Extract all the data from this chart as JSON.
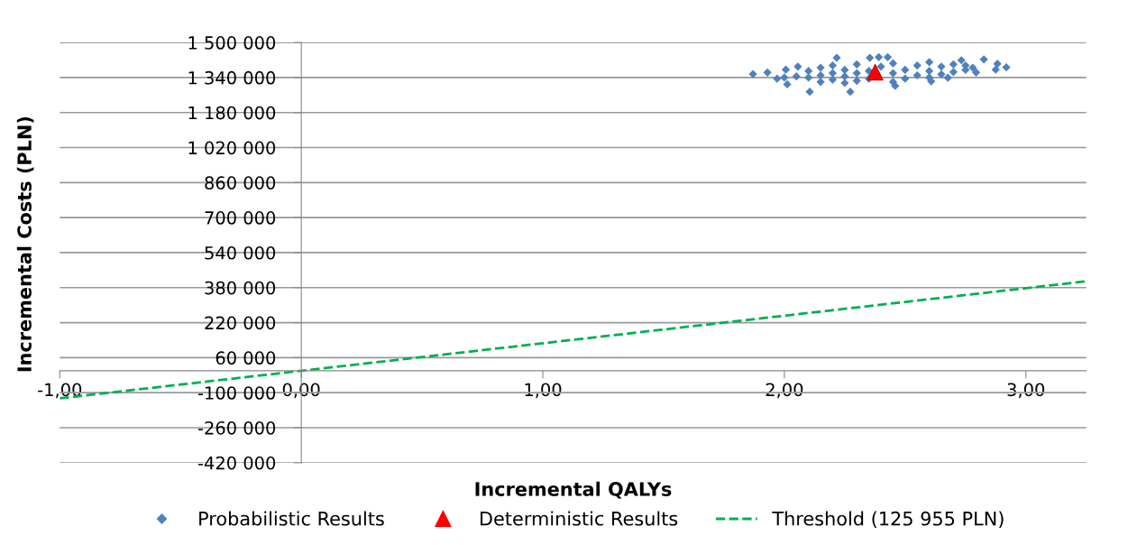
{
  "chart_data": {
    "type": "scatter",
    "xlabel": "Incremental QALYs",
    "ylabel": "Incremental Costs (PLN)",
    "xlim": [
      -1,
      3.25
    ],
    "xticks": [
      {
        "value": -1,
        "label": "-1,00"
      },
      {
        "value": 0,
        "label": "0,00"
      },
      {
        "value": 1,
        "label": "1,00"
      },
      {
        "value": 2,
        "label": "2,00"
      },
      {
        "value": 3,
        "label": "3,00"
      }
    ],
    "ylim": [
      -420000,
      1500000
    ],
    "yticks": [
      {
        "value": -420000,
        "label": "-420 000"
      },
      {
        "value": -260000,
        "label": "-260 000"
      },
      {
        "value": -100000,
        "label": "-100 000"
      },
      {
        "value": 60000,
        "label": "60 000"
      },
      {
        "value": 220000,
        "label": "220 000"
      },
      {
        "value": 380000,
        "label": "380 000"
      },
      {
        "value": 540000,
        "label": "540 000"
      },
      {
        "value": 700000,
        "label": "700 000"
      },
      {
        "value": 860000,
        "label": "860 000"
      },
      {
        "value": 1020000,
        "label": "1 020 000"
      },
      {
        "value": 1180000,
        "label": "1 180 000"
      },
      {
        "value": 1340000,
        "label": "1 340 000"
      },
      {
        "value": 1500000,
        "label": "1 500 000"
      }
    ],
    "grid": "y",
    "legend": "bottom",
    "series": [
      {
        "name": "Probabilistic Results",
        "marker": "diamond",
        "color": "#4f81bd",
        "x": [
          1.87,
          1.93,
          2.006,
          2.012,
          2.056,
          2.105,
          2.217,
          2.273,
          2.354,
          2.391,
          2.428,
          2.459,
          2.608,
          2.677,
          2.733,
          2.826,
          2.794,
          2.882,
          2.919,
          2.875,
          2.1,
          2.1,
          2.15,
          2.15,
          2.15,
          2.2,
          2.2,
          2.2,
          2.25,
          2.25,
          2.25,
          2.3,
          2.3,
          2.3,
          2.35,
          2.35,
          2.4,
          2.45,
          2.45,
          2.45,
          2.5,
          2.5,
          2.55,
          2.55,
          2.6,
          2.6,
          2.6,
          2.65,
          2.65,
          2.7,
          2.7,
          2.75,
          2.75,
          2.05,
          2.0,
          1.97,
          2.78
        ],
        "values": [
          1356000,
          1363000,
          1376000,
          1309000,
          1390000,
          1275000,
          1430000,
          1275000,
          1430000,
          1433000,
          1433000,
          1302000,
          1323000,
          1339000,
          1419000,
          1423000,
          1363000,
          1403000,
          1387000,
          1376000,
          1340000,
          1370000,
          1320000,
          1350000,
          1385000,
          1330000,
          1360000,
          1395000,
          1315000,
          1345000,
          1375000,
          1325000,
          1360000,
          1400000,
          1335000,
          1370000,
          1390000,
          1320000,
          1360000,
          1405000,
          1335000,
          1375000,
          1350000,
          1395000,
          1340000,
          1370000,
          1410000,
          1355000,
          1390000,
          1365000,
          1400000,
          1375000,
          1395000,
          1345000,
          1340000,
          1335000,
          1385000
        ]
      },
      {
        "name": "Deterministic Results",
        "marker": "triangle",
        "color": "#ff0000",
        "x": [
          2.376
        ],
        "values": [
          1364000
        ]
      },
      {
        "name": "Threshold (125 955 PLN)",
        "type": "line",
        "line_style": "dashed",
        "marker": "none",
        "color": "#00b050",
        "x": [
          -1,
          3.25
        ],
        "values": [
          -126000,
          409000
        ]
      }
    ]
  }
}
